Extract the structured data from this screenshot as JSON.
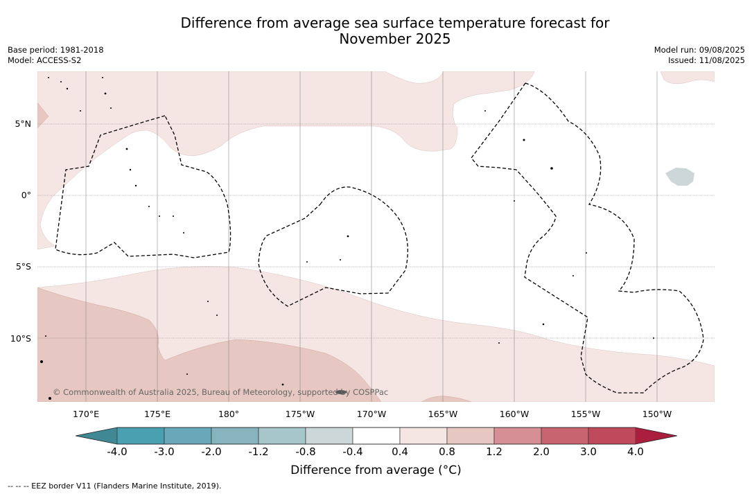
{
  "title_line1": "Difference from average sea surface temperature forecast for",
  "title_line2": "November 2025",
  "meta_left": [
    "Base period: 1981-2018",
    "Model: ACCESS-S2"
  ],
  "meta_right": [
    "Model run: 09/08/2025",
    "Issued: 11/08/2025"
  ],
  "map": {
    "lon_labels": [
      "170°E",
      "175°E",
      "180°",
      "175°W",
      "170°W",
      "165°W",
      "160°W",
      "155°W",
      "150°W"
    ],
    "lat_labels": [
      "5°N",
      "0°",
      "5°S",
      "10°S"
    ],
    "copyright": "© Commonwealth of Australia 2025, Bureau of Meteorology, supported by COSPPac",
    "colors": {
      "light_warm": "#f5e6e4",
      "mid_warm": "#e7c7c1",
      "cool_patch": "#cdd6d9",
      "eez_line": "#000000"
    }
  },
  "colorbar": {
    "ticks": [
      "-4.0",
      "-3.0",
      "-2.0",
      "-1.2",
      "-0.8",
      "-0.4",
      "0.4",
      "0.8",
      "1.2",
      "2.0",
      "3.0",
      "4.0"
    ],
    "colors": [
      "#3f8894",
      "#4aa0b1",
      "#68a8b8",
      "#87b4bf",
      "#a7c6ca",
      "#cdd6d9",
      "#ffffff",
      "#f5e6e4",
      "#e7c7c1",
      "#d58f95",
      "#c76470",
      "#bf4a5b",
      "#aa1f3e"
    ],
    "label": "Difference from average (°C)"
  },
  "eez_legend": "--  --  -- EEZ border V11 (Flanders Marine Institute, 2019)."
}
